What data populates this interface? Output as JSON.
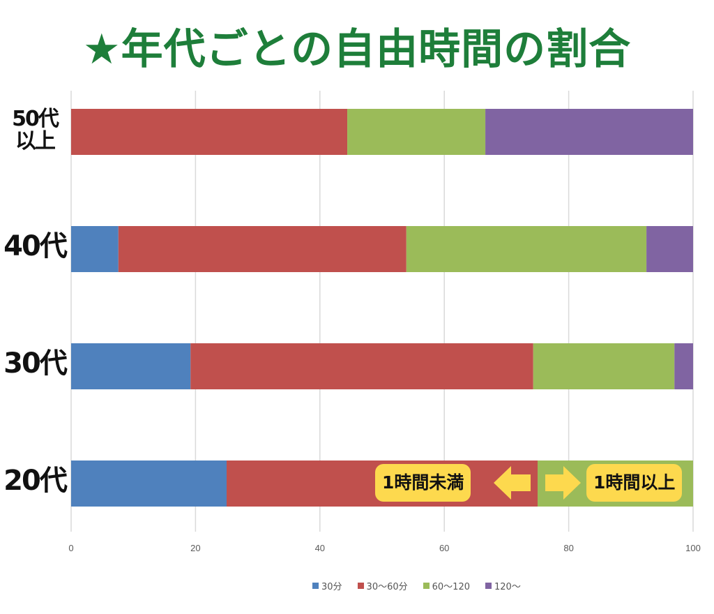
{
  "chart_data": {
    "type": "bar",
    "orientation": "horizontal",
    "stacked": true,
    "title": "★年代ごとの自由時間の割合",
    "categories": [
      "50代以上",
      "40代",
      "30代",
      "20代"
    ],
    "category_lines": [
      [
        "50代",
        "以上"
      ],
      [
        "40代"
      ],
      [
        "30代"
      ],
      [
        "20代"
      ]
    ],
    "series": [
      {
        "name": "30分",
        "color": "#4f81bd",
        "values": [
          0,
          7.6,
          19.2,
          25
        ]
      },
      {
        "name": "30〜60分",
        "color": "#c0504d",
        "values": [
          44.4,
          46.3,
          55.1,
          50
        ]
      },
      {
        "name": "60〜120",
        "color": "#9bbb59",
        "values": [
          22.2,
          38.6,
          22.7,
          25
        ]
      },
      {
        "name": "120〜",
        "color": "#8064a2",
        "values": [
          33.4,
          7.5,
          3.0,
          0
        ]
      }
    ],
    "xlim": [
      0,
      100
    ],
    "xticks": [
      "0",
      "20",
      "40",
      "60",
      "80",
      "100"
    ],
    "grid": true,
    "legend_position": "bottom",
    "annotations": {
      "left_label": "1時間未満",
      "right_label": "1時間以上",
      "highlight_color": "#fdd94e"
    }
  }
}
